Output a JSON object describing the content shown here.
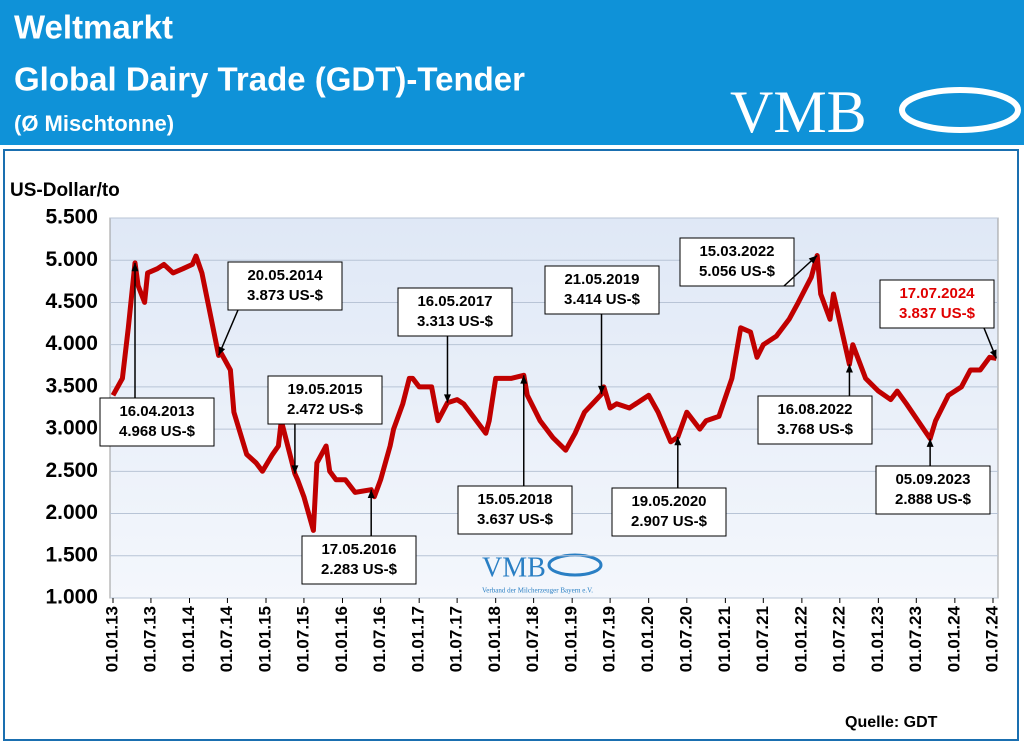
{
  "header": {
    "title": "Weltmarkt",
    "subtitle": "Global Dairy Trade (GDT)-Tender",
    "note": "(Ø Mischtonne)",
    "logo": "VMB"
  },
  "chart_data": {
    "type": "line",
    "y_label": "US-Dollar/to",
    "source": "Quelle: GDT",
    "watermark": {
      "logo": "VMB",
      "text": "Verband der Milcherzeuger Bayern e.V."
    },
    "x": [
      "01.01.13",
      "15.02.13",
      "15.03.13",
      "16.04.13",
      "01.05.13",
      "01.06.13",
      "15.06.13",
      "01.08.13",
      "01.09.13",
      "15.10.13",
      "01.12.13",
      "15.01.14",
      "01.02.14",
      "01.03.14",
      "15.04.14",
      "20.05.14",
      "01.06.14",
      "15.07.14",
      "01.08.14",
      "01.10.14",
      "15.11.14",
      "15.12.14",
      "01.02.15",
      "01.03.15",
      "15.03.15",
      "19.05.15",
      "01.06.15",
      "01.07.15",
      "15.08.15",
      "01.09.15",
      "15.10.15",
      "01.11.15",
      "01.12.15",
      "15.01.16",
      "01.03.16",
      "17.05.16",
      "01.06.16",
      "01.07.16",
      "15.08.16",
      "01.09.16",
      "15.10.16",
      "15.11.16",
      "01.12.16",
      "01.01.17",
      "01.03.17",
      "01.04.17",
      "16.05.17",
      "01.07.17",
      "01.08.17",
      "01.10.17",
      "15.11.17",
      "01.12.17",
      "01.01.18",
      "15.03.18",
      "15.05.18",
      "01.06.18",
      "01.08.18",
      "01.10.18",
      "01.12.18",
      "15.01.19",
      "01.03.19",
      "21.05.19",
      "01.06.19",
      "01.07.19",
      "01.08.19",
      "01.10.19",
      "01.12.19",
      "01.01.20",
      "15.02.20",
      "15.04.20",
      "19.05.20",
      "01.07.20",
      "01.09.20",
      "01.10.20",
      "01.12.20",
      "01.02.21",
      "15.03.21",
      "01.05.21",
      "01.06.21",
      "01.07.21",
      "01.09.21",
      "01.11.21",
      "15.12.21",
      "15.02.22",
      "15.03.22",
      "01.04.22",
      "15.05.22",
      "01.06.22",
      "16.08.22",
      "01.09.22",
      "01.11.22",
      "01.01.23",
      "01.03.23",
      "01.04.23",
      "15.05.23",
      "05.09.23",
      "01.10.23",
      "01.12.23",
      "01.02.24",
      "15.03.24",
      "01.05.24",
      "15.06.24",
      "17.07.24"
    ],
    "series": [
      {
        "name": "GDT",
        "color": "#c00000",
        "values": [
          3400,
          3600,
          4200,
          4968,
          4700,
          4500,
          4850,
          4900,
          4950,
          4850,
          4900,
          4950,
          5050,
          4850,
          4300,
          3873,
          3900,
          3700,
          3200,
          2700,
          2600,
          2500,
          2700,
          2800,
          3100,
          2472,
          2400,
          2200,
          1800,
          2600,
          2800,
          2500,
          2400,
          2400,
          2250,
          2283,
          2200,
          2400,
          2800,
          3000,
          3300,
          3600,
          3600,
          3500,
          3500,
          3100,
          3313,
          3350,
          3300,
          3100,
          2950,
          3100,
          3600,
          3600,
          3637,
          3400,
          3100,
          2900,
          2750,
          2950,
          3200,
          3414,
          3500,
          3250,
          3300,
          3250,
          3350,
          3400,
          3200,
          2850,
          2907,
          3200,
          3000,
          3100,
          3150,
          3600,
          4200,
          4150,
          3850,
          4000,
          4100,
          4300,
          4500,
          4800,
          5056,
          4600,
          4300,
          4600,
          3768,
          4000,
          3600,
          3450,
          3350,
          3450,
          3300,
          2888,
          3100,
          3400,
          3500,
          3700,
          3700,
          3850,
          3837
        ]
      }
    ],
    "xlim": [
      "01.01.13",
      "01.07.24"
    ],
    "xticks": [
      "01.01.13",
      "01.07.13",
      "01.01.14",
      "01.07.14",
      "01.01.15",
      "01.07.15",
      "01.01.16",
      "01.07.16",
      "01.01.17",
      "01.07.17",
      "01.01.18",
      "01.07.18",
      "01.01.19",
      "01.07.19",
      "01.01.20",
      "01.07.20",
      "01.01.21",
      "01.07.21",
      "01.01.22",
      "01.07.22",
      "01.01.23",
      "01.07.23",
      "01.01.24",
      "01.07.24"
    ],
    "ylim": [
      1000,
      5500
    ],
    "yticks": [
      {
        "value": 1000,
        "label": "1.000"
      },
      {
        "value": 1500,
        "label": "1.500"
      },
      {
        "value": 2000,
        "label": "2.000"
      },
      {
        "value": 2500,
        "label": "2.500"
      },
      {
        "value": 3000,
        "label": "3.000"
      },
      {
        "value": 3500,
        "label": "3.500"
      },
      {
        "value": 4000,
        "label": "4.000"
      },
      {
        "value": 4500,
        "label": "4.500"
      },
      {
        "value": 5000,
        "label": "5.000"
      },
      {
        "value": 5500,
        "label": "5.500"
      }
    ],
    "grid": true,
    "annotations": [
      {
        "date": "16.04.2013",
        "value": 4968,
        "label": "4.968 US-$"
      },
      {
        "date": "20.05.2014",
        "value": 3873,
        "label": "3.873 US-$"
      },
      {
        "date": "19.05.2015",
        "value": 2472,
        "label": "2.472 US-$"
      },
      {
        "date": "17.05.2016",
        "value": 2283,
        "label": "2.283 US-$"
      },
      {
        "date": "16.05.2017",
        "value": 3313,
        "label": "3.313 US-$"
      },
      {
        "date": "15.05.2018",
        "value": 3637,
        "label": "3.637 US-$"
      },
      {
        "date": "21.05.2019",
        "value": 3414,
        "label": "3.414 US-$"
      },
      {
        "date": "19.05.2020",
        "value": 2907,
        "label": "2.907 US-$"
      },
      {
        "date": "15.03.2022",
        "value": 5056,
        "label": "5.056 US-$"
      },
      {
        "date": "16.08.2022",
        "value": 3768,
        "label": "3.768 US-$"
      },
      {
        "date": "05.09.2023",
        "value": 2888,
        "label": "2.888 US-$"
      },
      {
        "date": "17.07.2024",
        "value": 3837,
        "label": "3.837 US-$",
        "color": "#e00000"
      }
    ]
  }
}
